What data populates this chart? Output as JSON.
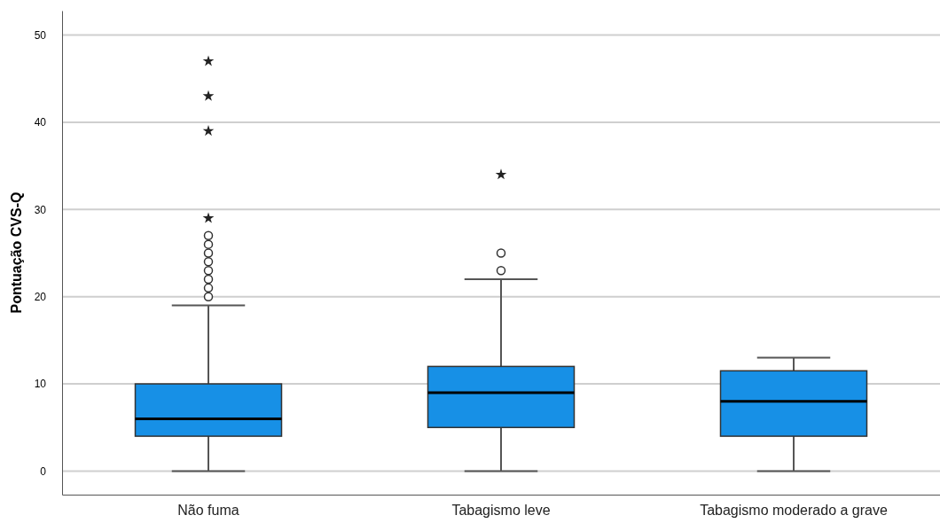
{
  "chart_data": {
    "type": "box",
    "ylabel": "Pontuação CVS-Q",
    "categories": [
      "Não fuma",
      "Tabagismo leve",
      "Tabagismo moderado a grave"
    ],
    "boxes": [
      {
        "low": 0,
        "q1": 4,
        "median": 6,
        "q3": 10,
        "high": 19,
        "outliers": [
          20,
          21,
          22,
          23,
          24,
          25,
          26,
          27,
          29,
          39,
          43,
          47
        ]
      },
      {
        "low": 0,
        "q1": 5,
        "median": 9,
        "q3": 12,
        "high": 22,
        "outliers": [
          23,
          25,
          34
        ]
      },
      {
        "low": 0,
        "q1": 4,
        "median": 8,
        "q3": 11.5,
        "high": 13
      }
    ],
    "color": "#1790e6",
    "ylim": [
      -2.7,
      52.8
    ],
    "yticks": [
      0,
      10,
      20,
      30,
      40,
      50
    ],
    "grid": "y"
  }
}
